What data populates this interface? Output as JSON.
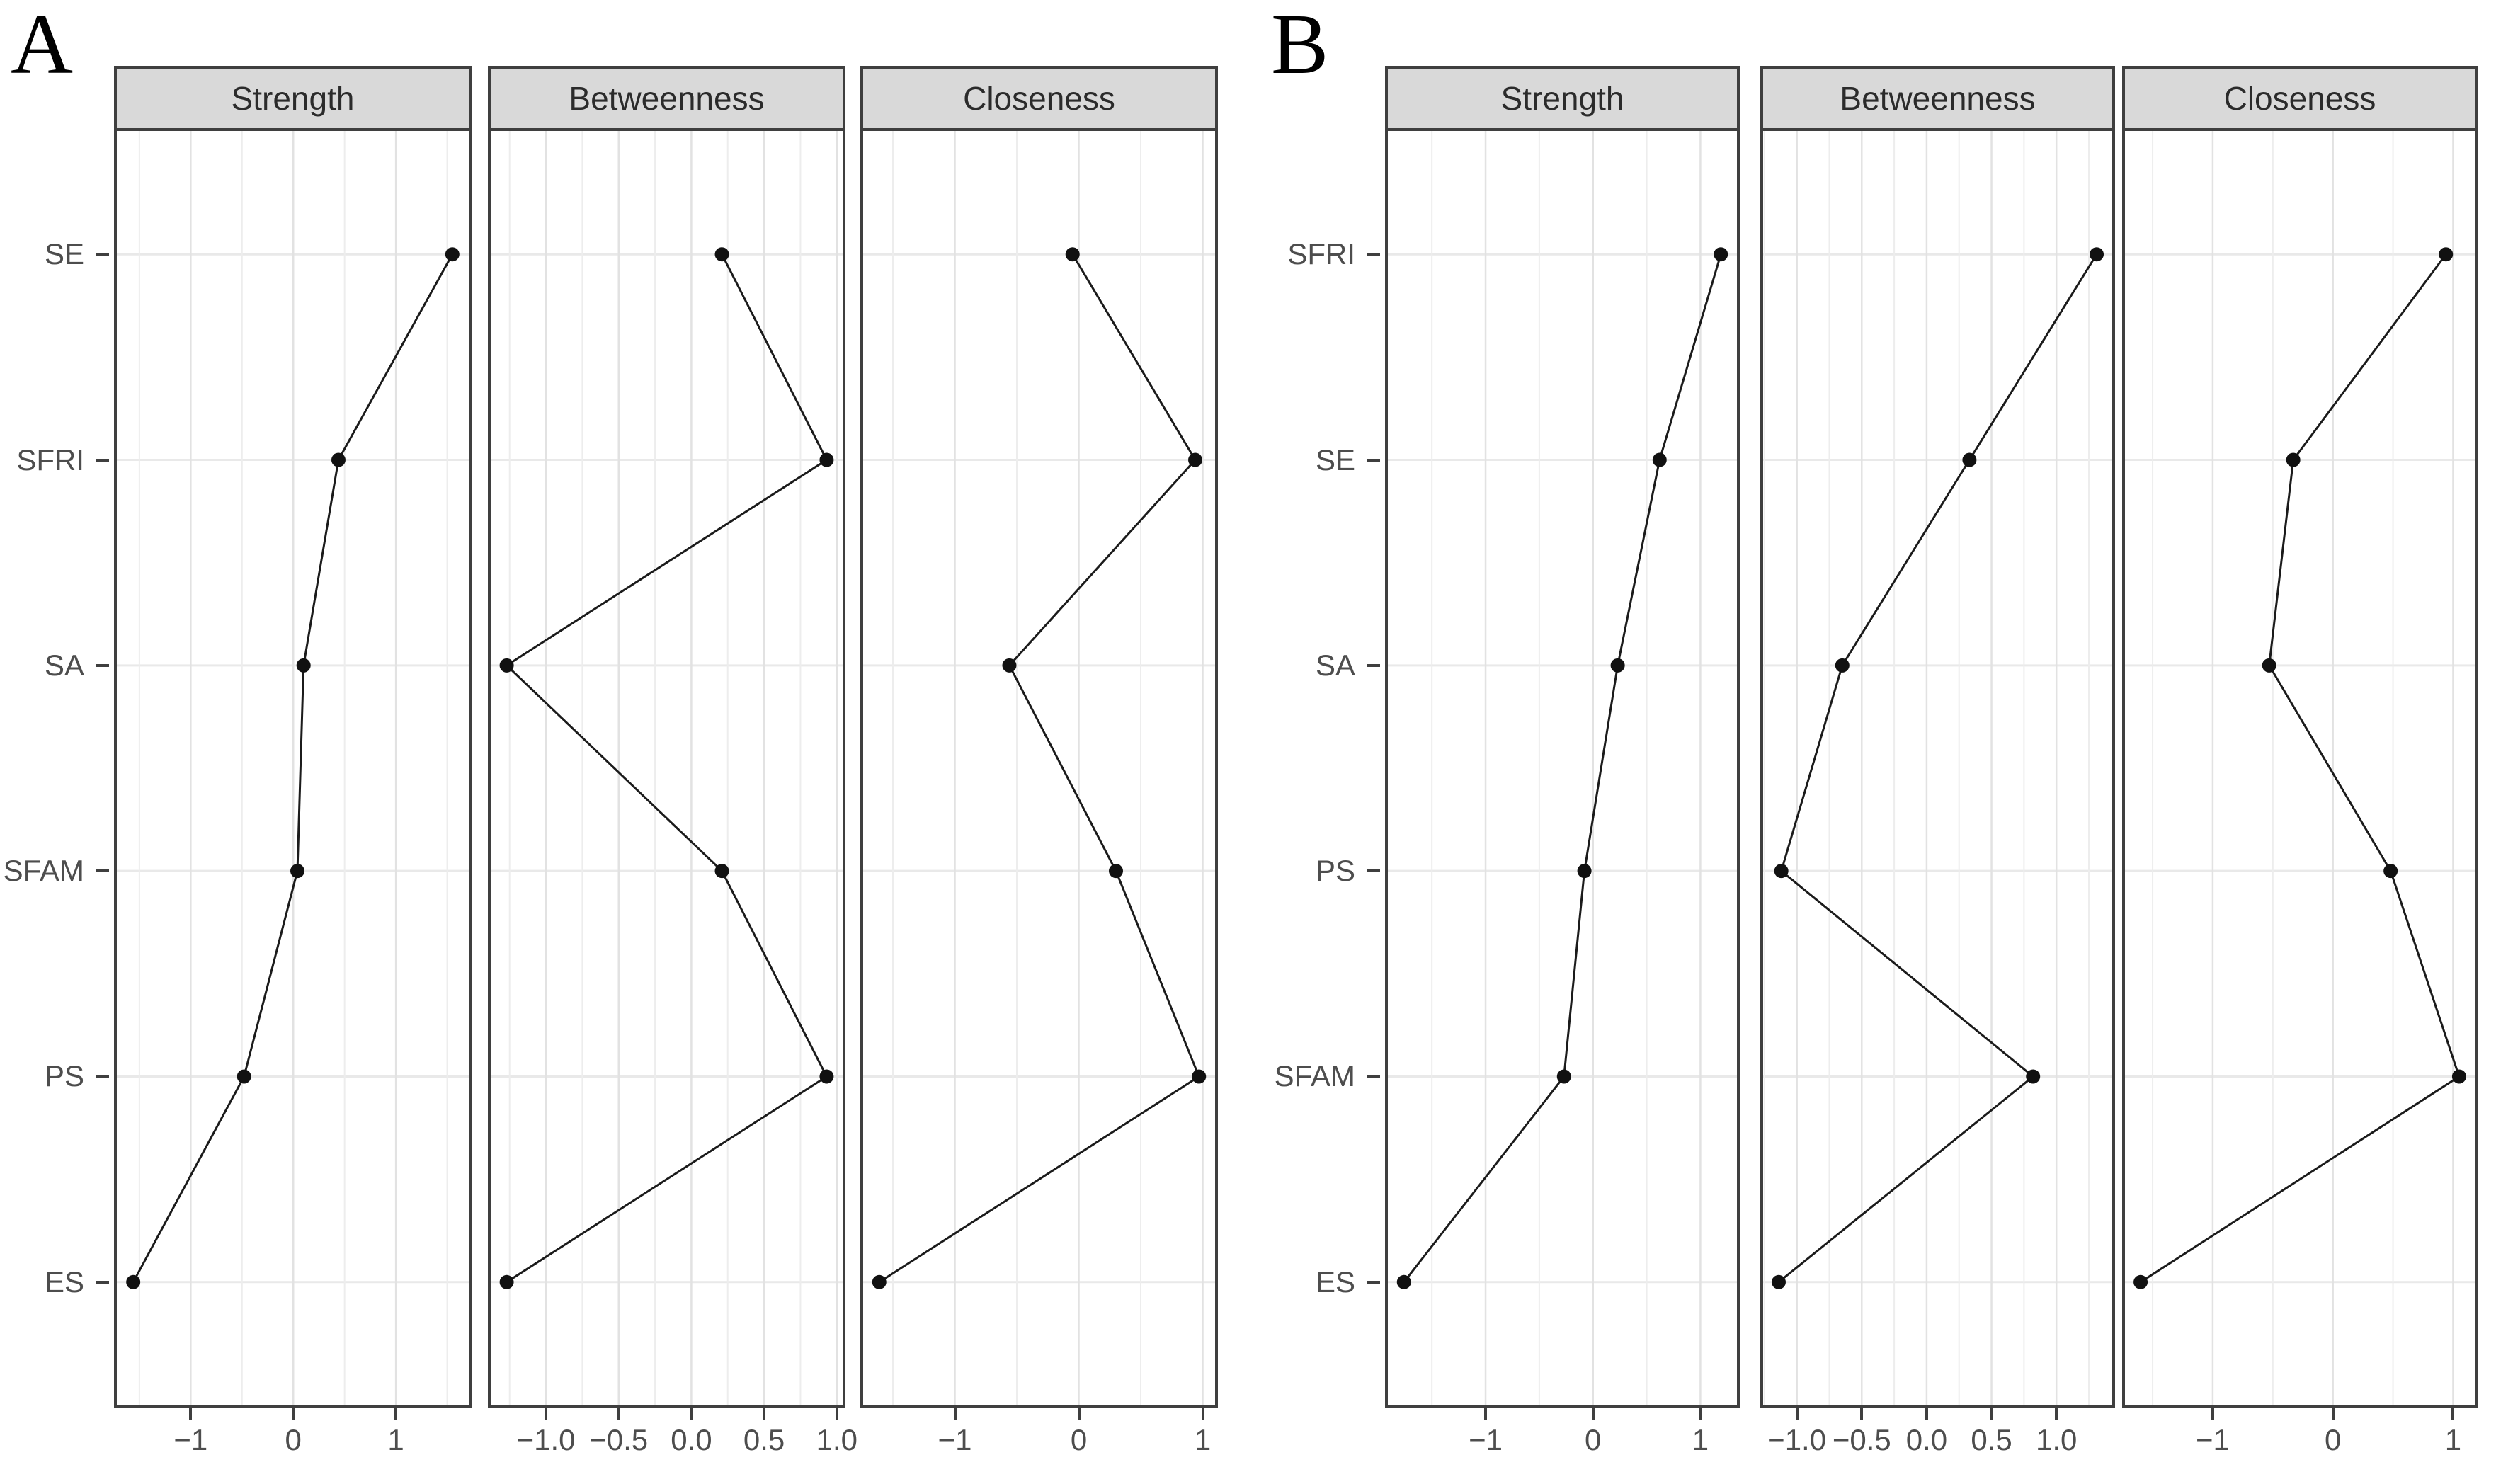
{
  "colors": {
    "background": "#ffffff",
    "line": "#1b1b1b",
    "point": "#111111",
    "grid_major": "#e2e2e2",
    "grid_minor": "#ededed",
    "row_grid": "#e9e9e9",
    "panel_border": "#3f3f3f",
    "strip_bg": "#d9d9d9",
    "strip_text": "#2b2b2b",
    "axis_text": "#4d4d4d"
  },
  "chart_data": [
    {
      "type": "line",
      "panel_label": "A",
      "orientation": "horizontal",
      "title": "",
      "xlabel": "",
      "ylabel": "",
      "legend": false,
      "grid": true,
      "categories_top_to_bottom": [
        "SE",
        "SFRI",
        "SA",
        "SFAM",
        "PS",
        "ES"
      ],
      "facets": [
        {
          "title": "Strength",
          "xlim": [
            -1.72,
            1.71
          ],
          "x_ticks": [
            -1,
            0,
            1
          ],
          "x_tick_labels": [
            "−1",
            "0",
            "1"
          ],
          "minor_grid_step": 0.5,
          "values": [
            1.55,
            0.44,
            0.1,
            0.04,
            -0.48,
            -1.56
          ]
        },
        {
          "title": "Betweenness",
          "xlim": [
            -1.38,
            1.04
          ],
          "x_ticks": [
            -1,
            -0.5,
            0,
            0.5,
            1
          ],
          "x_tick_labels": [
            "−1.0",
            "−0.5",
            "0.0",
            "0.5",
            "1.0"
          ],
          "minor_grid_step": 0.25,
          "values": [
            0.21,
            0.93,
            -1.27,
            0.21,
            0.93,
            -1.27
          ]
        },
        {
          "title": "Closeness",
          "xlim": [
            -1.74,
            1.1
          ],
          "x_ticks": [
            -1,
            0,
            1
          ],
          "x_tick_labels": [
            "−1",
            "0",
            "1"
          ],
          "minor_grid_step": 0.5,
          "values": [
            -0.05,
            0.94,
            -0.56,
            0.3,
            0.97,
            -1.61
          ]
        }
      ]
    },
    {
      "type": "line",
      "panel_label": "B",
      "orientation": "horizontal",
      "title": "",
      "xlabel": "",
      "ylabel": "",
      "legend": false,
      "grid": true,
      "categories_top_to_bottom": [
        "SFRI",
        "SE",
        "SA",
        "PS",
        "SFAM",
        "ES"
      ],
      "facets": [
        {
          "title": "Strength",
          "xlim": [
            -1.91,
            1.34
          ],
          "x_ticks": [
            -1,
            0,
            1
          ],
          "x_tick_labels": [
            "−1",
            "0",
            "1"
          ],
          "minor_grid_step": 0.5,
          "values": [
            1.19,
            0.62,
            0.23,
            -0.08,
            -0.27,
            -1.76
          ]
        },
        {
          "title": "Betweenness",
          "xlim": [
            -1.26,
            1.43
          ],
          "x_ticks": [
            -1,
            -0.5,
            0,
            0.5,
            1
          ],
          "x_tick_labels": [
            "−1.0",
            "−0.5",
            "0.0",
            "0.5",
            "1.0"
          ],
          "minor_grid_step": 0.25,
          "values": [
            1.31,
            0.33,
            -0.65,
            -1.12,
            0.82,
            -1.14
          ]
        },
        {
          "title": "Closeness",
          "xlim": [
            -1.73,
            1.18
          ],
          "x_ticks": [
            -1,
            0,
            1
          ],
          "x_tick_labels": [
            "−1",
            "0",
            "1"
          ],
          "minor_grid_step": 0.5,
          "values": [
            0.94,
            -0.33,
            -0.53,
            0.48,
            1.05,
            -1.6
          ]
        }
      ]
    }
  ]
}
